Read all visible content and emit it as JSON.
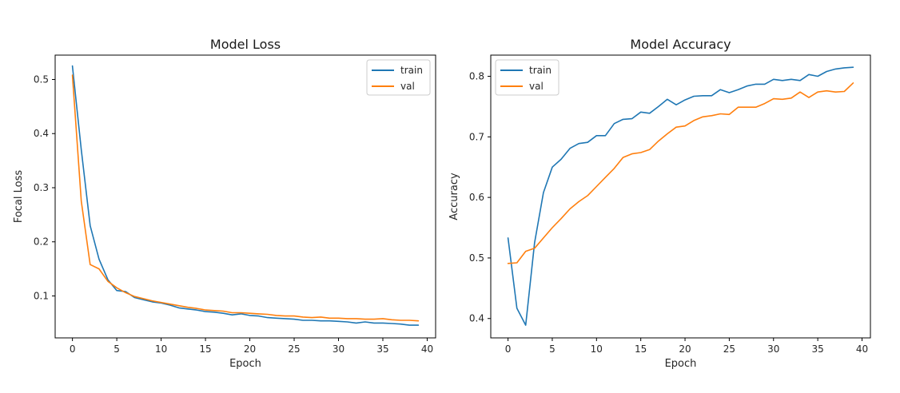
{
  "chart_data": [
    {
      "type": "line",
      "title": "Model Loss",
      "xlabel": "Epoch",
      "ylabel": "Focal Loss",
      "xlim": [
        -1.95,
        40.95
      ],
      "ylim": [
        0.0225,
        0.545
      ],
      "xticks": [
        0,
        5,
        10,
        15,
        20,
        25,
        30,
        35,
        40
      ],
      "yticks": [
        0.1,
        0.2,
        0.3,
        0.4,
        0.5
      ],
      "ytick_labels": [
        "0.1",
        "0.2",
        "0.3",
        "0.4",
        "0.5"
      ],
      "legend_position": "top-right",
      "x": [
        0,
        1,
        2,
        3,
        4,
        5,
        6,
        7,
        8,
        9,
        10,
        11,
        12,
        13,
        14,
        15,
        16,
        17,
        18,
        19,
        20,
        21,
        22,
        23,
        24,
        25,
        26,
        27,
        28,
        29,
        30,
        31,
        32,
        33,
        34,
        35,
        36,
        37,
        38,
        39
      ],
      "series": [
        {
          "name": "train",
          "color": "#1f77b4",
          "values": [
            0.525,
            0.37,
            0.23,
            0.168,
            0.13,
            0.11,
            0.108,
            0.097,
            0.093,
            0.089,
            0.087,
            0.083,
            0.078,
            0.076,
            0.074,
            0.071,
            0.07,
            0.068,
            0.065,
            0.067,
            0.064,
            0.063,
            0.06,
            0.059,
            0.058,
            0.057,
            0.055,
            0.055,
            0.054,
            0.054,
            0.053,
            0.052,
            0.05,
            0.052,
            0.05,
            0.05,
            0.049,
            0.048,
            0.046,
            0.046
          ]
        },
        {
          "name": "val",
          "color": "#ff7f0e",
          "values": [
            0.508,
            0.275,
            0.158,
            0.15,
            0.127,
            0.115,
            0.106,
            0.099,
            0.095,
            0.091,
            0.088,
            0.085,
            0.082,
            0.079,
            0.077,
            0.074,
            0.073,
            0.072,
            0.069,
            0.069,
            0.068,
            0.067,
            0.066,
            0.064,
            0.063,
            0.063,
            0.061,
            0.06,
            0.061,
            0.059,
            0.059,
            0.058,
            0.058,
            0.057,
            0.057,
            0.058,
            0.056,
            0.055,
            0.055,
            0.054
          ]
        }
      ]
    },
    {
      "type": "line",
      "title": "Model Accuracy",
      "xlabel": "Epoch",
      "ylabel": "Accuracy",
      "xlim": [
        -1.95,
        40.95
      ],
      "ylim": [
        0.368,
        0.835
      ],
      "xticks": [
        0,
        5,
        10,
        15,
        20,
        25,
        30,
        35,
        40
      ],
      "yticks": [
        0.4,
        0.5,
        0.6,
        0.7,
        0.8
      ],
      "ytick_labels": [
        "0.4",
        "0.5",
        "0.6",
        "0.7",
        "0.8"
      ],
      "legend_position": "top-left",
      "x": [
        0,
        1,
        2,
        3,
        4,
        5,
        6,
        7,
        8,
        9,
        10,
        11,
        12,
        13,
        14,
        15,
        16,
        17,
        18,
        19,
        20,
        21,
        22,
        23,
        24,
        25,
        26,
        27,
        28,
        29,
        30,
        31,
        32,
        33,
        34,
        35,
        36,
        37,
        38,
        39
      ],
      "series": [
        {
          "name": "train",
          "color": "#1f77b4",
          "values": [
            0.533,
            0.417,
            0.389,
            0.525,
            0.608,
            0.65,
            0.663,
            0.681,
            0.689,
            0.691,
            0.702,
            0.702,
            0.722,
            0.729,
            0.73,
            0.741,
            0.739,
            0.75,
            0.762,
            0.753,
            0.761,
            0.767,
            0.768,
            0.768,
            0.778,
            0.773,
            0.778,
            0.784,
            0.787,
            0.787,
            0.795,
            0.793,
            0.795,
            0.793,
            0.803,
            0.8,
            0.808,
            0.812,
            0.814,
            0.815
          ]
        },
        {
          "name": "val",
          "color": "#ff7f0e",
          "values": [
            0.491,
            0.492,
            0.511,
            0.516,
            0.533,
            0.55,
            0.565,
            0.581,
            0.593,
            0.603,
            0.618,
            0.633,
            0.648,
            0.666,
            0.672,
            0.674,
            0.679,
            0.693,
            0.705,
            0.716,
            0.718,
            0.727,
            0.733,
            0.735,
            0.738,
            0.737,
            0.749,
            0.749,
            0.749,
            0.755,
            0.763,
            0.762,
            0.764,
            0.774,
            0.765,
            0.774,
            0.776,
            0.774,
            0.775,
            0.789
          ]
        }
      ]
    }
  ]
}
